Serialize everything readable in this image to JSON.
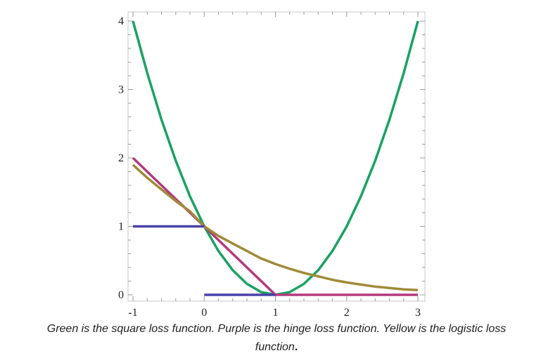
{
  "chart_data": {
    "type": "line",
    "title": "",
    "xlabel": "",
    "ylabel": "",
    "xlim": [
      -1,
      3
    ],
    "ylim": [
      0,
      4
    ],
    "x_ticks": [
      -1,
      0,
      1,
      2,
      3
    ],
    "y_ticks": [
      0,
      1,
      2,
      3,
      4
    ],
    "grid": false,
    "legend": "none",
    "series": [
      {
        "color": "#1aa262",
        "x": [
          -1,
          -0.8,
          -0.6,
          -0.4,
          -0.2,
          0,
          0.2,
          0.4,
          0.6,
          0.8,
          1,
          1.2,
          1.4,
          1.6,
          1.8,
          2,
          2.2,
          2.4,
          2.6,
          2.8,
          3
        ],
        "y": [
          4,
          3.24,
          2.56,
          1.96,
          1.44,
          1,
          0.64,
          0.36,
          0.16,
          0.04,
          0,
          0.04,
          0.16,
          0.36,
          0.64,
          1,
          1.44,
          1.96,
          2.56,
          3.24,
          4
        ]
      },
      {
        "color": "#b33a7e",
        "x": [
          -1,
          1,
          3
        ],
        "y": [
          2,
          0,
          0
        ]
      },
      {
        "color": "#a08a37",
        "x": [
          -1,
          -0.8,
          -0.6,
          -0.4,
          -0.2,
          0,
          0.2,
          0.4,
          0.6,
          0.8,
          1,
          1.2,
          1.4,
          1.6,
          1.8,
          2,
          2.2,
          2.4,
          2.6,
          2.8,
          3
        ],
        "y": [
          1.9,
          1.71,
          1.54,
          1.37,
          1.22,
          1.0,
          0.86,
          0.75,
          0.64,
          0.53,
          0.45,
          0.38,
          0.32,
          0.27,
          0.22,
          0.18,
          0.15,
          0.12,
          0.1,
          0.08,
          0.07
        ]
      },
      {
        "color": "#4a42a8",
        "x": [
          -1,
          0
        ],
        "y": [
          1,
          1
        ]
      },
      {
        "color": "#4a42a8",
        "x": [
          0,
          1
        ],
        "y": [
          0,
          0
        ]
      }
    ]
  },
  "caption": {
    "line1": "Green is the square loss function. Purple is the hinge loss function. Yellow is the logistic loss",
    "line2": "function",
    "end": "."
  }
}
